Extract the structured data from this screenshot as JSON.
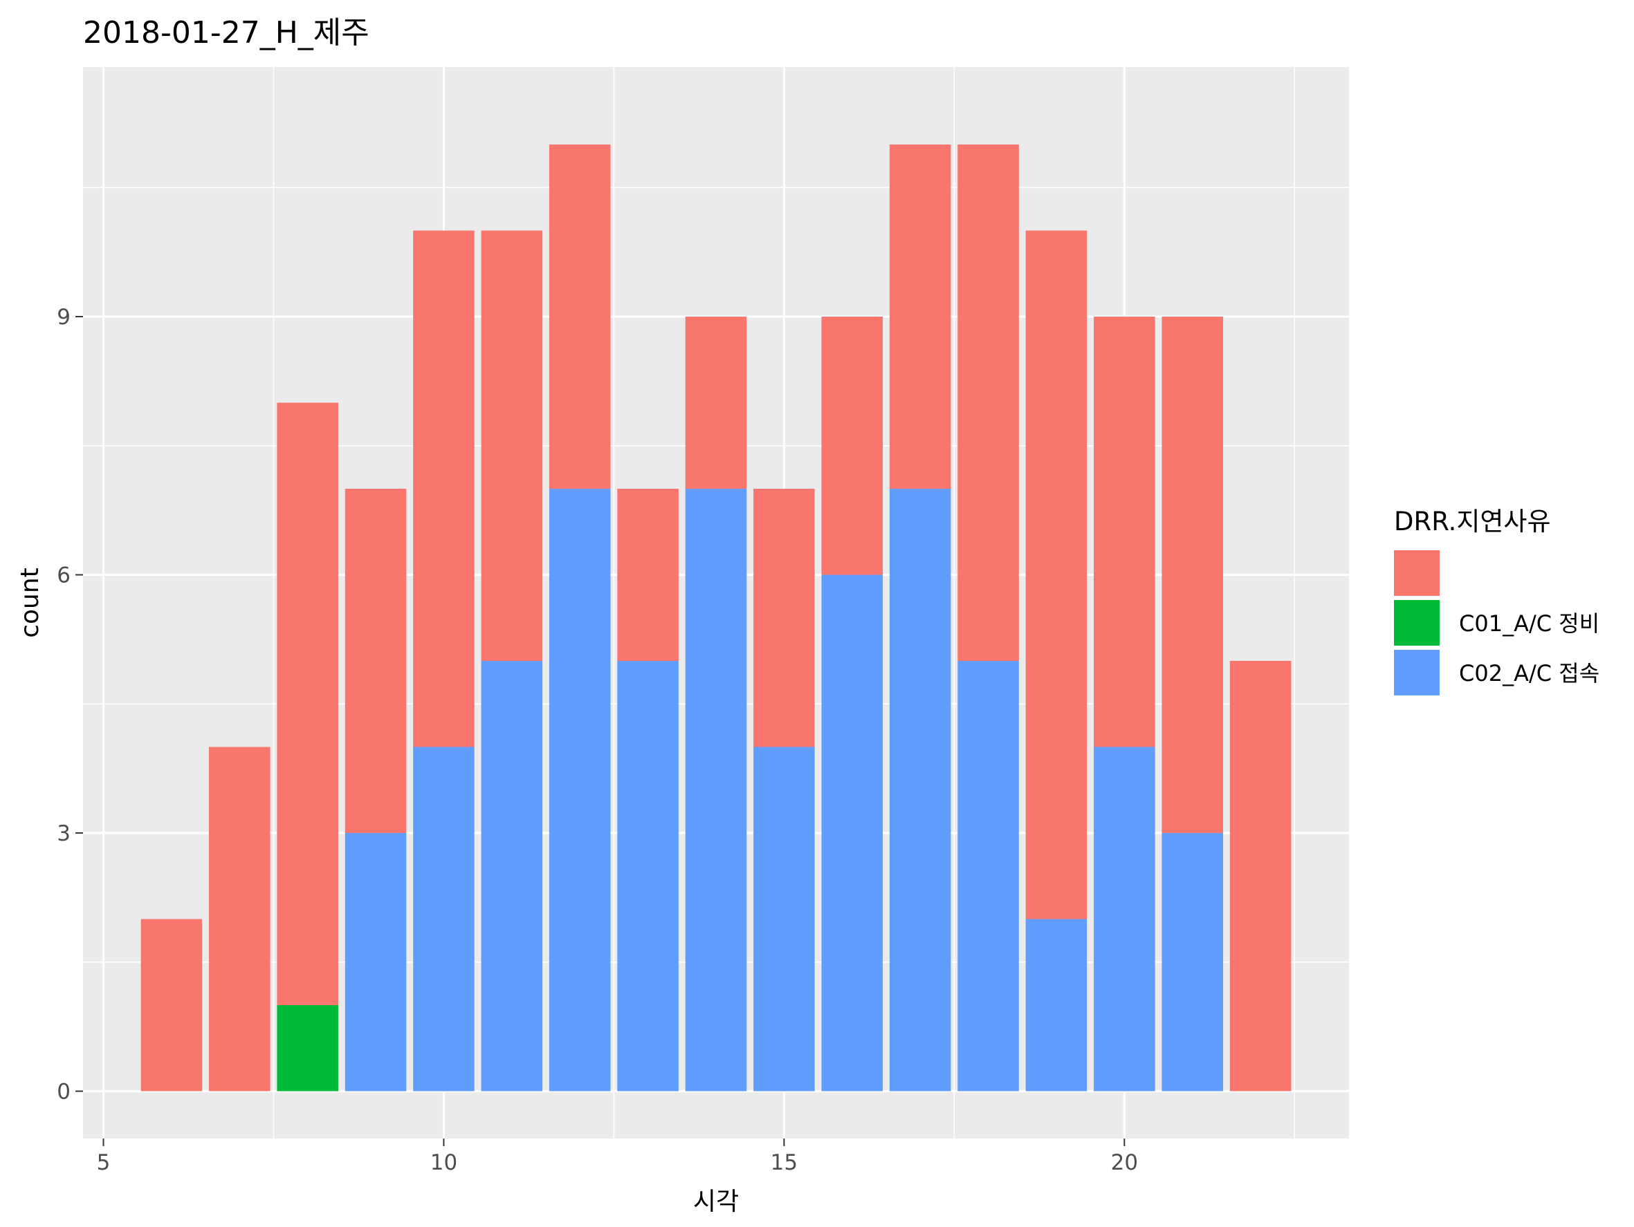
{
  "chart_data": {
    "type": "bar",
    "stacked": true,
    "title": "2018-01-27_H_제주",
    "xlabel": "시각",
    "ylabel": "count",
    "xlim": [
      4.7,
      23.3
    ],
    "ylim": [
      -0.55,
      11.9
    ],
    "x_ticks": [
      5,
      10,
      15,
      20
    ],
    "y_ticks": [
      0,
      3,
      6,
      9
    ],
    "x_minor": [
      7.5,
      12.5,
      17.5,
      22.5
    ],
    "y_minor": [
      1.5,
      4.5,
      7.5,
      10.5
    ],
    "grid": true,
    "legend": {
      "title": "DRR.지연사유",
      "position": "right",
      "entries": [
        {
          "label": "",
          "color": "#F8766D"
        },
        {
          "label": "C01_A/C 정비",
          "color": "#00BA38"
        },
        {
          "label": "C02_A/C 접속",
          "color": "#619CFF"
        }
      ]
    },
    "categories": [
      6,
      7,
      8,
      9,
      10,
      11,
      12,
      13,
      14,
      15,
      16,
      17,
      18,
      19,
      20,
      21,
      22
    ],
    "series": [
      {
        "name": "",
        "color": "#F8766D",
        "values": [
          2,
          4,
          7,
          4,
          6,
          5,
          4,
          2,
          2,
          3,
          3,
          4,
          6,
          8,
          5,
          6,
          5
        ]
      },
      {
        "name": "C01_A/C 정비",
        "color": "#00BA38",
        "values": [
          0,
          0,
          1,
          0,
          0,
          0,
          0,
          0,
          0,
          0,
          0,
          0,
          0,
          0,
          0,
          0,
          0
        ]
      },
      {
        "name": "C02_A/C 접속",
        "color": "#619CFF",
        "values": [
          0,
          0,
          0,
          3,
          4,
          5,
          7,
          5,
          7,
          4,
          6,
          7,
          5,
          2,
          4,
          3,
          0
        ]
      }
    ]
  }
}
